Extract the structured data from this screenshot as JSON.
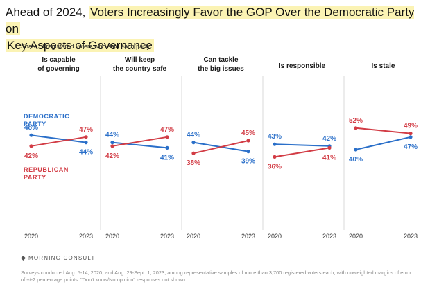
{
  "header": {
    "title_prefix": "Ahead of 2024, ",
    "title_highlight_1": "Voters Increasingly Favor the GOP Over the Democratic Party on",
    "title_highlight_2": "Key Aspects of Governance",
    "subtitle": "Share of registered voters who said each party ..."
  },
  "chart_data": {
    "type": "line",
    "panels": [
      {
        "label_lines": [
          "Is capable",
          "of governing"
        ],
        "x": [
          "2020",
          "2023"
        ],
        "democratic": [
          48,
          44
        ],
        "republican": [
          42,
          47
        ]
      },
      {
        "label_lines": [
          "Will keep",
          "the country safe"
        ],
        "x": [
          "2020",
          "2023"
        ],
        "democratic": [
          44,
          41
        ],
        "republican": [
          42,
          47
        ]
      },
      {
        "label_lines": [
          "Can tackle",
          "the big issues"
        ],
        "x": [
          "2020",
          "2023"
        ],
        "democratic": [
          44,
          39
        ],
        "republican": [
          38,
          45
        ]
      },
      {
        "label_lines": [
          "Is responsible"
        ],
        "x": [
          "2020",
          "2023"
        ],
        "democratic": [
          43,
          42
        ],
        "republican": [
          36,
          41
        ]
      },
      {
        "label_lines": [
          "Is stale"
        ],
        "x": [
          "2020",
          "2023"
        ],
        "democratic": [
          40,
          47
        ],
        "republican": [
          52,
          49
        ]
      }
    ],
    "series": [
      {
        "name": "DEMOCRATIC PARTY",
        "name_lines": [
          "DEMOCRATIC",
          "PARTY"
        ],
        "color": "#2a6fc9"
      },
      {
        "name": "REPUBLICAN PARTY",
        "name_lines": [
          "REPUBLICAN",
          "PARTY"
        ],
        "color": "#d23c45"
      }
    ],
    "value_suffix": "%",
    "x_tick_labels": [
      "2020",
      "2023"
    ],
    "grid": false
  },
  "footer": {
    "brand": "MORNING CONSULT",
    "note": "Surveys conducted Aug. 5-14, 2020, and Aug. 29-Sept. 1, 2023, among representative samples of more than 3,700 registered voters each, with unweighted margins of error of +/-2 percentage points. \"Don't know/No opinion\" responses not shown."
  }
}
